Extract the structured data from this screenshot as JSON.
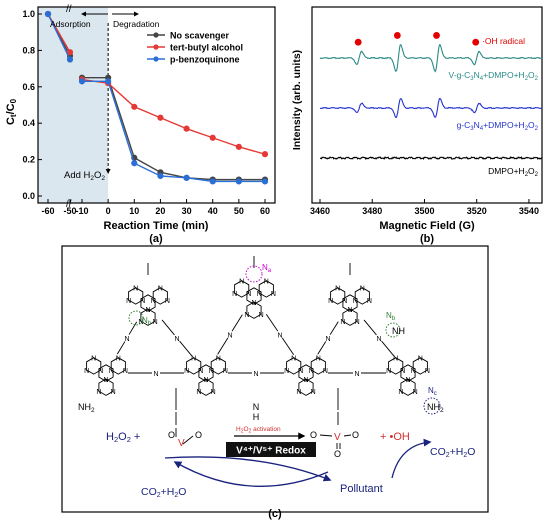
{
  "figure": {
    "panel_a": {
      "label": "(a)",
      "xlabel": "Reaction Time (min)",
      "ylabel_main": "C",
      "ylabel_sub1": "t",
      "ylabel_mid": "/C",
      "ylabel_sub2": "0",
      "adsorption_label": "Adsorption",
      "degradation_label": "Degradation",
      "add_label_main": "Add H",
      "add_label_sub": "2",
      "add_label_end": "O",
      "add_label_sub2": "2",
      "x_tick_labels": [
        "-60",
        "-50",
        "-10",
        "0",
        "10",
        "20",
        "30",
        "40",
        "50",
        "60"
      ],
      "y_tick_labels": [
        "0.0",
        "0.2",
        "0.4",
        "0.6",
        "0.8",
        "1.0"
      ],
      "break_mark": "//",
      "colors": {
        "no_scavenger": "#444444",
        "tba": "#e53935",
        "pbq": "#2a6fd6",
        "shade": "#dbe7ef"
      }
    },
    "panel_b": {
      "label": "(b)",
      "xlabel": "Magnetic Field (G)",
      "ylabel": "Intensity (arb. units)",
      "x_tick_labels": [
        "3460",
        "3480",
        "3500",
        "3520",
        "3540"
      ],
      "radical_label": "·OH radical",
      "trace_labels": [
        {
          "text": "V-g-C",
          "s1": "3",
          "mid": "N",
          "s2": "4",
          "end": "+DMPO+H",
          "s3": "2",
          "end2": "O",
          "s4": "2"
        },
        {
          "text": "g-C",
          "s1": "3",
          "mid": "N",
          "s2": "4",
          "end": "+DMPO+H",
          "s3": "2",
          "end2": "O",
          "s4": "2"
        },
        {
          "text": "DMPO+H",
          "s1": "2",
          "mid": "O",
          "s2": "2",
          "end": "",
          "s3": "",
          "end2": "",
          "s4": ""
        }
      ],
      "colors": {
        "v_gcn": "#2a8a85",
        "gcn": "#2233cc",
        "dmpo": "#000000",
        "dot": "#e50000"
      }
    },
    "panel_c": {
      "label": "(c)",
      "na_label": "N",
      "na_sub": "a",
      "nb_label": "N",
      "nb_sub": "b",
      "nc_label": "N",
      "nc_sub": "c",
      "h2o2_left": "H",
      "h2o2_left_s1": "2",
      "h2o2_left_o": "O",
      "h2o2_left_s2": "2",
      "plus": "+",
      "activation_label": "H",
      "activation_s1": "2",
      "activation_o": "O",
      "activation_s2": "2",
      "activation_end": " activation",
      "redox_label": "V⁴⁺/V⁵⁺ Redox",
      "oh_label": "+ •OH",
      "co2_left": "CO",
      "co2_left_s1": "2",
      "co2_left_end": "+H",
      "co2_left_s2": "2",
      "co2_left_o": "O",
      "co2_right": "CO",
      "co2_right_s1": "2",
      "co2_right_end": "+H",
      "co2_right_s2": "2",
      "co2_right_o": "O",
      "pollutant": "Pollutant",
      "nh2_left": "NH",
      "nh2_left_s": "2",
      "nh_right": "NH",
      "nh_bottom": "N",
      "nh_bottom_h": "H",
      "nh2_right": "NH",
      "nh2_right_s": "2",
      "v_atom": "V",
      "o_atom": "O",
      "n_atom": "N"
    }
  },
  "chart_data": [
    {
      "type": "line",
      "panel": "a",
      "xlabel": "Reaction Time (min)",
      "ylabel": "Ct/C0",
      "xlim": [
        -60,
        60
      ],
      "ylim": [
        0,
        1.0
      ],
      "x": [
        -60,
        -50,
        -10,
        0,
        10,
        20,
        30,
        40,
        50,
        60
      ],
      "series": [
        {
          "name": "No scavenger",
          "values": [
            1.0,
            0.77,
            0.65,
            0.65,
            0.21,
            0.13,
            0.1,
            0.09,
            0.09,
            0.09
          ]
        },
        {
          "name": "tert-butyl alcohol",
          "values": [
            1.0,
            0.79,
            0.64,
            0.62,
            0.49,
            0.43,
            0.37,
            0.32,
            0.27,
            0.23
          ]
        },
        {
          "name": "p-benzoquinone",
          "values": [
            1.0,
            0.75,
            0.63,
            0.63,
            0.18,
            0.11,
            0.1,
            0.08,
            0.08,
            0.08
          ]
        }
      ],
      "legend": "top-right",
      "grid": false
    },
    {
      "type": "line",
      "panel": "b",
      "xlabel": "Magnetic Field (G)",
      "ylabel": "Intensity (arb. units)",
      "xlim": [
        3460,
        3545
      ],
      "peak_positions": [
        3475,
        3490,
        3505,
        3520
      ],
      "series": [
        {
          "name": "V-g-C3N4+DMPO+H2O2",
          "relative_amplitudes": [
            1,
            2,
            2,
            1
          ],
          "amplitude": 1.0
        },
        {
          "name": "g-C3N4+DMPO+H2O2",
          "relative_amplitudes": [
            1,
            2,
            2,
            1
          ],
          "amplitude": 0.7
        },
        {
          "name": "DMPO+H2O2",
          "relative_amplitudes": [
            0,
            0,
            0,
            0
          ],
          "amplitude": 0.0
        }
      ],
      "grid": false
    }
  ]
}
